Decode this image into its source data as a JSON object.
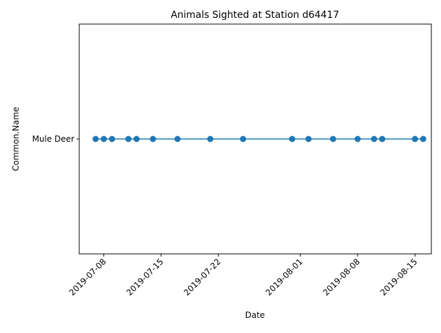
{
  "chart_data": {
    "type": "line",
    "title": "Animals Sighted at Station d64417",
    "xlabel": "Date",
    "ylabel": "Common.Name",
    "categories_y": [
      "Mule Deer"
    ],
    "x_ticks": [
      "2019-07-08",
      "2019-07-15",
      "2019-07-22",
      "2019-08-01",
      "2019-08-08",
      "2019-08-15"
    ],
    "xlim": [
      "2019-07-05",
      "2019-08-17"
    ],
    "series": [
      {
        "color": "#1f77b4",
        "marker": "circle",
        "x": [
          "2019-07-07",
          "2019-07-08",
          "2019-07-09",
          "2019-07-11",
          "2019-07-12",
          "2019-07-14",
          "2019-07-17",
          "2019-07-21",
          "2019-07-25",
          "2019-07-31",
          "2019-08-02",
          "2019-08-05",
          "2019-08-08",
          "2019-08-10",
          "2019-08-11",
          "2019-08-15",
          "2019-08-16"
        ],
        "y": [
          "Mule Deer",
          "Mule Deer",
          "Mule Deer",
          "Mule Deer",
          "Mule Deer",
          "Mule Deer",
          "Mule Deer",
          "Mule Deer",
          "Mule Deer",
          "Mule Deer",
          "Mule Deer",
          "Mule Deer",
          "Mule Deer",
          "Mule Deer",
          "Mule Deer",
          "Mule Deer",
          "Mule Deer"
        ]
      }
    ],
    "grid": false,
    "legend": "none"
  }
}
